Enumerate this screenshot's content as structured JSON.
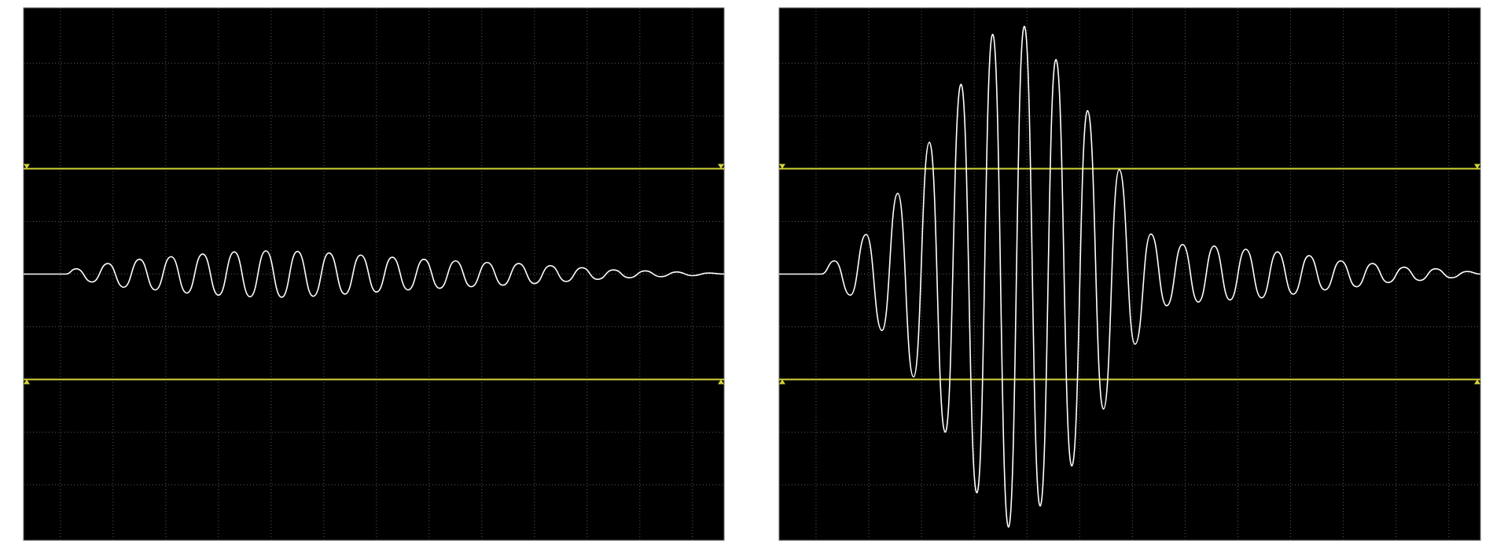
{
  "chart_data": [
    {
      "type": "line",
      "xlim": [
        0,
        13.3
      ],
      "ylim": [
        -5.05,
        5.05
      ],
      "xticks": [
        0.7,
        1.7,
        2.7,
        3.7,
        4.7,
        5.7,
        6.7,
        7.7,
        8.7,
        9.7,
        10.7,
        11.7,
        12.7
      ],
      "yticks": [
        -4,
        -3,
        -2,
        -1,
        0,
        1,
        2,
        3,
        4
      ],
      "grid": true,
      "cursors": [
        2,
        -2
      ],
      "cursor_color": "#d4d43a",
      "series": [
        {
          "color": "#ffffff",
          "x": [
            0,
            0.8,
            1.0,
            1.3,
            1.6,
            1.9,
            2.2,
            2.5,
            2.8,
            3.1,
            3.4,
            3.7,
            4.0,
            4.3,
            4.6,
            4.9,
            5.2,
            5.5,
            5.8,
            6.1,
            6.4,
            6.7,
            7.0,
            7.3,
            7.6,
            7.9,
            8.2,
            8.5,
            8.8,
            9.1,
            9.4,
            9.7,
            10.0,
            10.3,
            10.6,
            10.9,
            11.2,
            11.5,
            11.8,
            12.1,
            12.4,
            12.7,
            13.0,
            13.3
          ],
          "values": [
            0,
            0,
            0.1,
            -0.15,
            0.2,
            -0.25,
            0.28,
            -0.3,
            0.33,
            -0.36,
            0.38,
            -0.4,
            0.42,
            -0.43,
            0.44,
            -0.44,
            0.43,
            -0.42,
            0.4,
            -0.38,
            0.36,
            -0.34,
            0.32,
            -0.3,
            0.28,
            -0.27,
            0.25,
            -0.24,
            0.22,
            -0.21,
            0.2,
            -0.18,
            0.16,
            -0.14,
            0.12,
            -0.1,
            0.08,
            -0.07,
            0.06,
            -0.05,
            0.04,
            -0.03,
            0.02,
            0
          ]
        }
      ]
    },
    {
      "type": "line",
      "xlim": [
        0,
        13.3
      ],
      "ylim": [
        -5.05,
        5.05
      ],
      "xticks": [
        0.7,
        1.7,
        2.7,
        3.7,
        4.7,
        5.7,
        6.7,
        7.7,
        8.7,
        9.7,
        10.7,
        11.7,
        12.7
      ],
      "yticks": [
        -4,
        -3,
        -2,
        -1,
        0,
        1,
        2,
        3,
        4
      ],
      "grid": true,
      "cursors": [
        2,
        -2
      ],
      "cursor_color": "#d4d43a",
      "series": [
        {
          "color": "#ffffff",
          "x": [
            0,
            0.8,
            1.05,
            1.35,
            1.65,
            1.95,
            2.25,
            2.55,
            2.85,
            3.15,
            3.45,
            3.75,
            4.05,
            4.35,
            4.65,
            4.95,
            5.25,
            5.55,
            5.85,
            6.15,
            6.45,
            6.75,
            7.05,
            7.35,
            7.65,
            7.95,
            8.25,
            8.55,
            8.85,
            9.15,
            9.45,
            9.75,
            10.05,
            10.35,
            10.65,
            10.95,
            11.25,
            11.55,
            11.85,
            12.15,
            12.45,
            12.75,
            13.05,
            13.3
          ],
          "values": [
            0,
            0,
            0.25,
            -0.4,
            0.75,
            -1.07,
            1.53,
            -1.95,
            2.5,
            -3.0,
            3.6,
            -4.15,
            4.55,
            -4.8,
            4.7,
            -4.4,
            4.07,
            -3.64,
            3.1,
            -2.56,
            1.98,
            -1.33,
            0.76,
            -0.6,
            0.56,
            -0.53,
            0.53,
            -0.49,
            0.47,
            -0.45,
            0.42,
            -0.38,
            0.35,
            -0.3,
            0.25,
            -0.24,
            0.2,
            -0.16,
            0.13,
            -0.12,
            0.1,
            -0.07,
            0.05,
            0
          ]
        }
      ]
    }
  ]
}
